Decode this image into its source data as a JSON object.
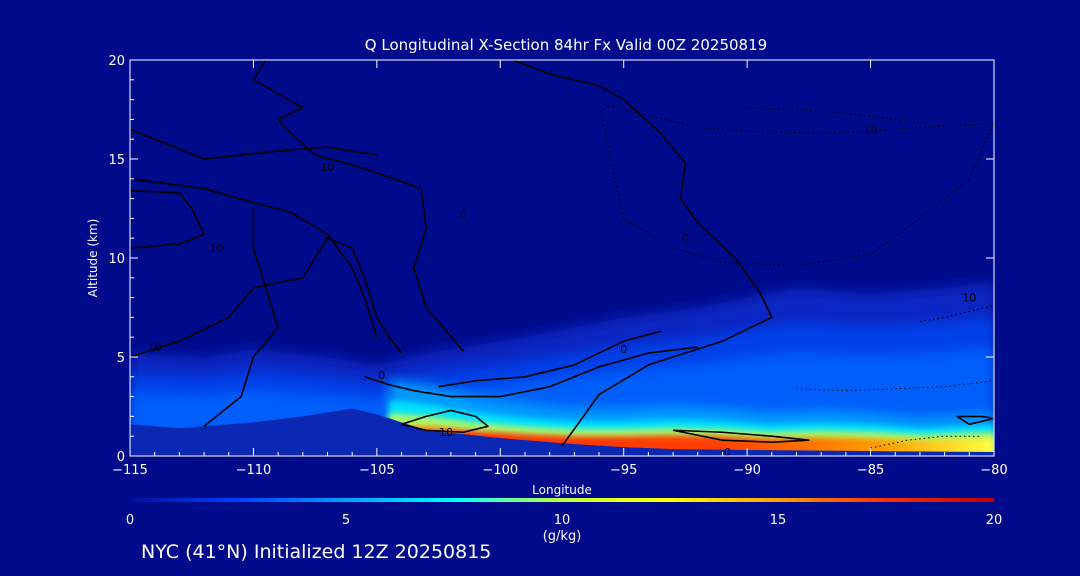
{
  "footer": "NYC (41°N) Initialized 12Z 20250815",
  "chart_data": {
    "type": "heatmap",
    "title": "Q Longitudinal X-Section 84hr  Fx Valid 00Z 20250819",
    "xlabel": "Longitude",
    "ylabel": "Altitude (km)",
    "xlim": [
      -115,
      -80
    ],
    "ylim": [
      0,
      20
    ],
    "x_ticks": [
      "−115",
      "−110",
      "−105",
      "−100",
      "−95",
      "−90",
      "−85",
      "−80"
    ],
    "x_tick_values": [
      -115,
      -110,
      -105,
      -100,
      -95,
      -90,
      -85,
      -80
    ],
    "y_ticks": [
      "0",
      "5",
      "10",
      "15",
      "20"
    ],
    "y_tick_values": [
      0,
      5,
      10,
      15,
      20
    ],
    "colorbar": {
      "label": "(g/kg)",
      "range": [
        0,
        20
      ],
      "ticks": [
        "0",
        "5",
        "10",
        "15",
        "20"
      ],
      "tick_values": [
        0,
        5,
        10,
        15,
        20
      ],
      "colors": [
        "#0010a0",
        "#0040ff",
        "#00a0ff",
        "#00ffff",
        "#c0ff40",
        "#ffff00",
        "#ffa000",
        "#ff3000",
        "#c00000"
      ]
    },
    "terrain": {
      "x": [
        -115,
        -114,
        -113,
        -112,
        -110,
        -108,
        -106,
        -105,
        -103,
        -100,
        -97,
        -95,
        -93,
        -90,
        -85,
        -80
      ],
      "y": [
        1.6,
        1.5,
        1.4,
        1.5,
        1.7,
        2.0,
        2.4,
        2.1,
        1.3,
        0.9,
        0.6,
        0.45,
        0.35,
        0.3,
        0.25,
        0.2
      ]
    },
    "moisture_top": {
      "x": [
        -115,
        -112,
        -110,
        -107,
        -105,
        -103,
        -100,
        -97,
        -95,
        -92,
        -90,
        -88,
        -85,
        -82,
        -80
      ],
      "y": [
        5.2,
        5.0,
        5.4,
        5.0,
        4.6,
        5.2,
        5.8,
        6.5,
        7.0,
        7.5,
        8.0,
        8.5,
        8.2,
        8.5,
        8.8
      ]
    },
    "moist_core": {
      "x": [
        -104.5,
        -103,
        -101,
        -99,
        -97,
        -95,
        -93,
        -91,
        -89,
        -87,
        -85,
        -83,
        -80
      ],
      "y": [
        1.6,
        1.5,
        1.25,
        1.1,
        1.0,
        1.0,
        1.05,
        1.0,
        0.9,
        0.95,
        0.9,
        0.8,
        0.9
      ],
      "peak_value": 18
    },
    "contour_labels": [
      {
        "x": -107,
        "y": 14.6,
        "text": "10"
      },
      {
        "x": -111.5,
        "y": 10.5,
        "text": "10"
      },
      {
        "x": -114,
        "y": 5.5,
        "text": "10"
      },
      {
        "x": -101.5,
        "y": 12.2,
        "text": "0"
      },
      {
        "x": -92.5,
        "y": 11.0,
        "text": "0"
      },
      {
        "x": -85,
        "y": 16.5,
        "text": "10"
      },
      {
        "x": -81,
        "y": 8.0,
        "text": "10"
      },
      {
        "x": -95,
        "y": 5.4,
        "text": "0"
      },
      {
        "x": -104.8,
        "y": 4.1,
        "text": "0"
      },
      {
        "x": -102.2,
        "y": 1.2,
        "text": "10"
      },
      {
        "x": -90.8,
        "y": 0.2,
        "text": "0"
      }
    ],
    "solid_contours": [
      {
        "x": [
          -109.5,
          -110,
          -109,
          -108,
          -109,
          -108.5,
          -107.5,
          -106,
          -105,
          -103.2,
          -103,
          -103.5,
          -103,
          -101.5
        ],
        "y": [
          20,
          19,
          18.3,
          17.6,
          17,
          16.3,
          15.2,
          14.7,
          14.3,
          13.5,
          11.5,
          9.5,
          7.5,
          5.3
        ]
      },
      {
        "x": [
          -115,
          -112,
          -109,
          -107,
          -105
        ],
        "y": [
          16.5,
          15.0,
          15.4,
          15.6,
          15.2
        ]
      },
      {
        "x": [
          -115,
          -112,
          -110,
          -108.5,
          -107,
          -106,
          -105.5,
          -105
        ],
        "y": [
          14.0,
          13.5,
          12.8,
          12.3,
          11.2,
          9.5,
          8.0,
          6.0
        ]
      },
      {
        "x": [
          -115,
          -113,
          -112.5,
          -112,
          -113,
          -115
        ],
        "y": [
          13.4,
          13.3,
          12.5,
          11.2,
          10.7,
          10.5
        ]
      },
      {
        "x": [
          -115,
          -113,
          -111,
          -110,
          -108,
          -107.5,
          -107,
          -106,
          -105.5,
          -105,
          -104.5,
          -104
        ],
        "y": [
          5.0,
          5.8,
          7.0,
          8.5,
          9.0,
          10.0,
          11.0,
          10.5,
          9.0,
          7.0,
          6.0,
          5.2
        ]
      },
      {
        "x": [
          -112,
          -110.5,
          -110,
          -109,
          -109.5,
          -110,
          -110
        ],
        "y": [
          1.5,
          3.0,
          5.0,
          6.5,
          8.5,
          10.5,
          12.5
        ]
      },
      {
        "x": [
          -105.5,
          -104.5,
          -103.5,
          -102,
          -100,
          -98,
          -96,
          -94,
          -92
        ],
        "y": [
          4.0,
          3.6,
          3.3,
          3.0,
          3.0,
          3.5,
          4.5,
          5.2,
          5.5
        ]
      },
      {
        "x": [
          -102.5,
          -101,
          -99,
          -97,
          -95,
          -93.5
        ],
        "y": [
          3.5,
          3.8,
          4.0,
          4.6,
          5.8,
          6.3
        ]
      },
      {
        "x": [
          -99.5,
          -98,
          -96,
          -95,
          -93.5,
          -92.5,
          -92.7,
          -92,
          -90.5,
          -89.5,
          -89,
          -91,
          -94,
          -96,
          -97.5
        ],
        "y": [
          20,
          19.3,
          18.7,
          18.0,
          16.3,
          14.8,
          13.0,
          11.8,
          10.0,
          8.3,
          7.0,
          5.8,
          4.6,
          3.1,
          0.5
        ]
      },
      {
        "x": [
          -104,
          -103,
          -102,
          -101,
          -100.5,
          -101.5,
          -103,
          -104
        ],
        "y": [
          1.6,
          2.0,
          2.3,
          2.0,
          1.5,
          1.2,
          1.3,
          1.6
        ]
      },
      {
        "x": [
          -93,
          -91,
          -89,
          -87.5,
          -89,
          -91,
          -93
        ],
        "y": [
          1.3,
          1.2,
          1.0,
          0.8,
          0.7,
          0.8,
          1.3
        ]
      },
      {
        "x": [
          -81.5,
          -80.5,
          -80,
          -81,
          -81.5
        ],
        "y": [
          2.0,
          2.0,
          1.9,
          1.6,
          2.0
        ]
      }
    ],
    "dotted_contours": [
      {
        "x": [
          -96,
          -94,
          -92,
          -90,
          -87,
          -85,
          -83,
          -81.5,
          -80,
          -81,
          -83,
          -85,
          -88,
          -91,
          -93,
          -95,
          -96
        ],
        "y": [
          17.8,
          17.2,
          16.6,
          16.4,
          16.3,
          16.4,
          16.6,
          16.7,
          16.8,
          14.0,
          12.0,
          10.2,
          9.6,
          9.8,
          10.5,
          12.0,
          17.8
        ]
      },
      {
        "x": [
          -90,
          -88,
          -86,
          -84,
          -83
        ],
        "y": [
          17.6,
          17.5,
          17.3,
          17.0,
          16.8
        ]
      },
      {
        "x": [
          -83,
          -82,
          -81,
          -80
        ],
        "y": [
          6.8,
          7.0,
          7.3,
          7.6
        ]
      },
      {
        "x": [
          -88,
          -86,
          -84,
          -82,
          -80
        ],
        "y": [
          3.4,
          3.3,
          3.4,
          3.5,
          3.8
        ]
      },
      {
        "x": [
          -85,
          -83.5,
          -82,
          -80.5
        ],
        "y": [
          0.4,
          0.8,
          1.0,
          1.0
        ]
      }
    ]
  }
}
